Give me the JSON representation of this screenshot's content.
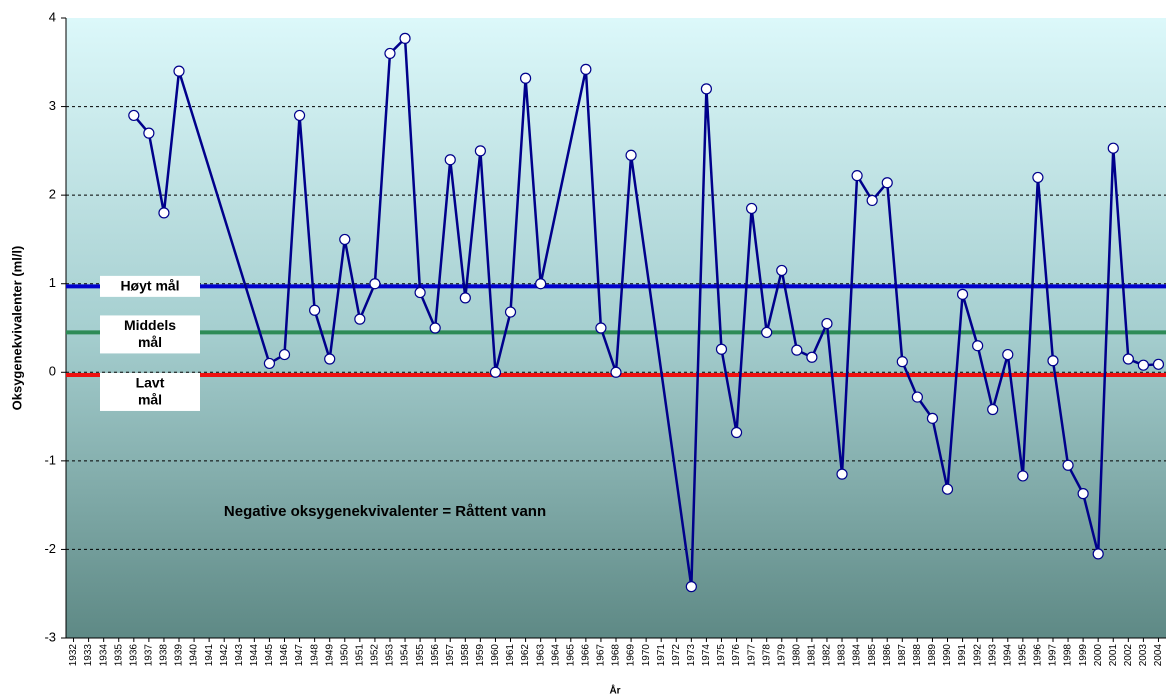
{
  "chart_data": {
    "type": "line",
    "y_label": "Oksygenekvivalenter (ml/l)",
    "x_label": "År",
    "annotation": "Negative oksygenekvivalenter = Råttent vann",
    "xlim": [
      1931.5,
      2004.5
    ],
    "xticks": [
      1932,
      1933,
      1934,
      1935,
      1936,
      1937,
      1938,
      1939,
      1940,
      1941,
      1942,
      1943,
      1944,
      1945,
      1946,
      1947,
      1948,
      1949,
      1950,
      1951,
      1952,
      1953,
      1954,
      1955,
      1956,
      1957,
      1958,
      1959,
      1960,
      1961,
      1962,
      1963,
      1964,
      1965,
      1966,
      1967,
      1968,
      1969,
      1970,
      1971,
      1972,
      1973,
      1974,
      1975,
      1976,
      1977,
      1978,
      1979,
      1980,
      1981,
      1982,
      1983,
      1984,
      1985,
      1986,
      1987,
      1988,
      1989,
      1990,
      1991,
      1992,
      1993,
      1994,
      1995,
      1996,
      1997,
      1998,
      1999,
      2000,
      2001,
      2002,
      2003,
      2004
    ],
    "ylim": [
      -3,
      4
    ],
    "yticks": [
      -3,
      -2,
      -1,
      0,
      1,
      2,
      3,
      4
    ],
    "grid": true,
    "x": [
      1936,
      1937,
      1938,
      1939,
      1945,
      1946,
      1947,
      1948,
      1949,
      1950,
      1951,
      1952,
      1953,
      1954,
      1955,
      1956,
      1957,
      1958,
      1959,
      1960,
      1961,
      1962,
      1963,
      1966,
      1967,
      1968,
      1969,
      1973,
      1974,
      1975,
      1976,
      1977,
      1978,
      1979,
      1980,
      1981,
      1982,
      1983,
      1984,
      1985,
      1986,
      1987,
      1988,
      1989,
      1990,
      1991,
      1992,
      1993,
      1994,
      1995,
      1996,
      1997,
      1998,
      1999,
      2000,
      2001,
      2002,
      2003,
      2004
    ],
    "series": [
      {
        "color": "#00008b",
        "values": [
          2.9,
          2.7,
          1.8,
          3.4,
          0.1,
          0.2,
          2.9,
          0.7,
          0.15,
          1.5,
          0.6,
          1.0,
          3.6,
          3.77,
          0.9,
          0.5,
          2.4,
          0.84,
          2.5,
          0.0,
          0.68,
          3.32,
          1.0,
          3.42,
          0.5,
          0.0,
          2.45,
          -2.42,
          3.2,
          0.26,
          -0.68,
          1.85,
          0.45,
          1.15,
          0.25,
          0.17,
          0.55,
          -1.15,
          2.22,
          1.94,
          2.14,
          0.12,
          -0.28,
          -0.52,
          -1.32,
          0.88,
          0.3,
          -0.42,
          0.2,
          -1.17,
          2.2,
          0.13,
          -1.05,
          -1.37,
          -2.05,
          2.53,
          0.15,
          0.08,
          0.09
        ]
      }
    ],
    "reference_lines": [
      {
        "label": [
          "Høyt mål"
        ],
        "value": 0.97,
        "color": "#0000cc"
      },
      {
        "label": [
          "Middels",
          "mål"
        ],
        "value": 0.45,
        "color": "#2e8b57"
      },
      {
        "label": [
          "Lavt",
          "mål"
        ],
        "value": -0.03,
        "color": "#ee1111"
      }
    ]
  }
}
